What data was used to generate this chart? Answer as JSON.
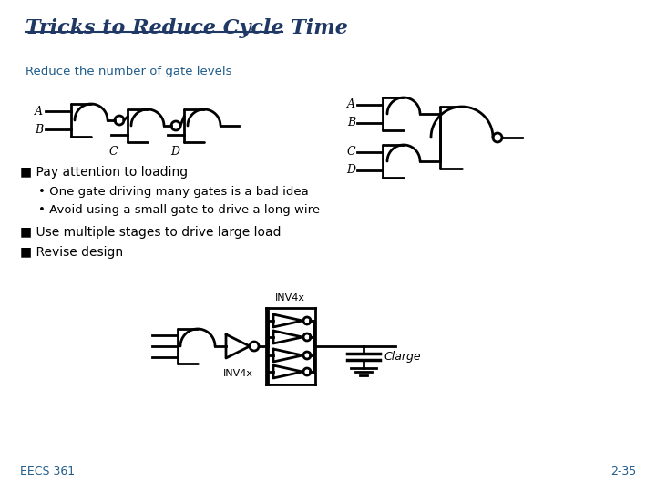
{
  "title": "Tricks to Reduce Cycle Time",
  "title_color": "#1F3864",
  "title_fontsize": 16,
  "bg_color": "#FFFFFF",
  "text_color": "#000000",
  "section1_label": "Reduce the number of gate levels",
  "section1_color": "#1F5C8B",
  "bullet1": "■ Pay attention to loading",
  "sub1": "• One gate driving many gates is a bad idea",
  "sub2": "• Avoid using a small gate to drive a long wire",
  "bullet2": "■ Use multiple stages to drive large load",
  "bullet3": "■ Revise design",
  "footer_left": "EECS 361",
  "footer_right": "2-35",
  "gate_color": "#000000",
  "gate_linewidth": 2.0
}
